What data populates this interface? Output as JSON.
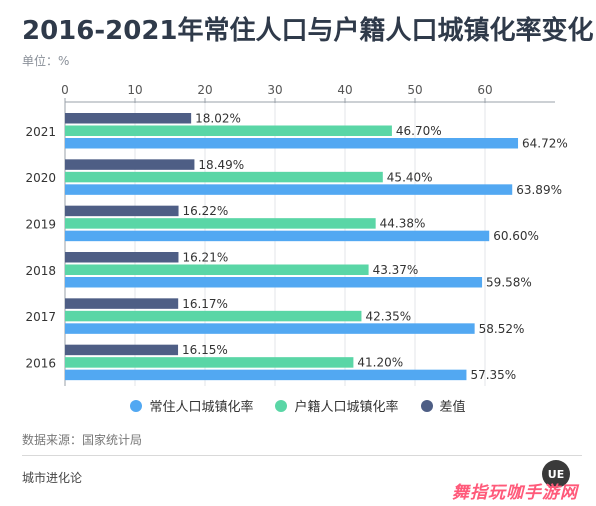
{
  "header": {
    "title": "2016-2021年常住人口与户籍人口城镇化率变化",
    "unit": "单位：%"
  },
  "colors": {
    "resident": "#52a8f2",
    "registered": "#5ad6a6",
    "diff": "#4e5e85"
  },
  "chart_data": {
    "type": "bar",
    "orientation": "horizontal",
    "categories": [
      "2021",
      "2020",
      "2019",
      "2018",
      "2017",
      "2016"
    ],
    "series": [
      {
        "name": "差值",
        "values": [
          18.02,
          18.49,
          16.22,
          16.21,
          16.17,
          16.15
        ]
      },
      {
        "name": "户籍人口城镇化率",
        "values": [
          46.7,
          45.4,
          44.38,
          43.37,
          42.35,
          41.2
        ]
      },
      {
        "name": "常住人口城镇化率",
        "values": [
          64.72,
          63.89,
          60.6,
          59.58,
          58.52,
          57.35
        ]
      }
    ],
    "data_labels": [
      [
        "18.02%",
        "18.49%",
        "16.22%",
        "16.21%",
        "16.17%",
        "16.15%"
      ],
      [
        "46.70%",
        "45.40%",
        "44.38%",
        "43.37%",
        "42.35%",
        "41.20%"
      ],
      [
        "64.72%",
        "63.89%",
        "60.60%",
        "59.58%",
        "58.52%",
        "57.35%"
      ]
    ],
    "xlim": [
      0,
      70
    ],
    "xticks": [
      0,
      10,
      20,
      30,
      40,
      50,
      60
    ],
    "xtick_labels": [
      "0",
      "10",
      "20",
      "30",
      "40",
      "50",
      "60"
    ],
    "axis_position": "top",
    "grid": true,
    "legend_position": "bottom"
  },
  "legend": {
    "items": [
      {
        "label": "常住人口城镇化率",
        "color": "#52a8f2"
      },
      {
        "label": "户籍人口城镇化率",
        "color": "#5ad6a6"
      },
      {
        "label": "差值",
        "color": "#4e5e85"
      }
    ]
  },
  "footer": {
    "source": "数据来源：国家统计局",
    "brand": "城市进化论",
    "logo_text": "UE"
  },
  "watermark": {
    "site": "舞指玩咖手游网"
  }
}
